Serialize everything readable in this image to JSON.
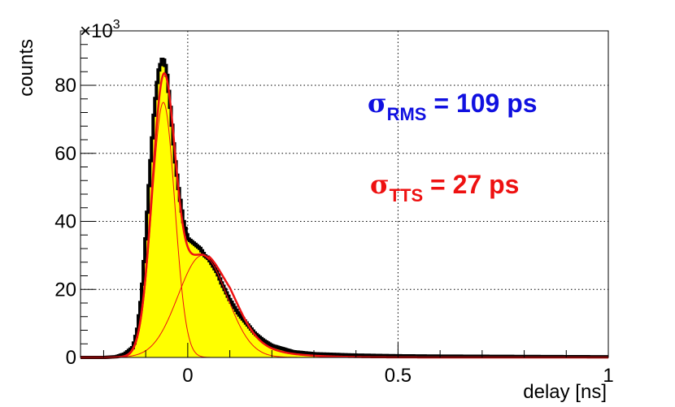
{
  "chart_data": {
    "type": "line",
    "title": "",
    "xlabel": "delay [ns]",
    "ylabel": "counts",
    "y_multiplier": "×10",
    "y_multiplier_exponent": "3",
    "xlim": [
      -0.255,
      1.0
    ],
    "ylim": [
      0,
      96
    ],
    "x_ticks": [
      0,
      0.5,
      1
    ],
    "x_tick_labels": [
      "0",
      "0.5",
      "1"
    ],
    "y_ticks": [
      0,
      20,
      40,
      60,
      80
    ],
    "y_tick_labels": [
      "0",
      "20",
      "40",
      "60",
      "80"
    ],
    "grid": true,
    "annotations": {
      "rms": {
        "sigma": "σ",
        "subscript": "RMS",
        "text": " = 109 ps",
        "color": "#1010e0"
      },
      "tts": {
        "sigma": "σ",
        "subscript": "TTS",
        "text": " = 27 ps",
        "color": "#ee1111"
      }
    },
    "colors": {
      "histogram_fill": "#ffff00",
      "histogram_markers": "#000000",
      "fit_lines": "#ee1111"
    },
    "components": [
      {
        "role": "narrow-gaussian",
        "mean": -0.058,
        "sigma": 0.027,
        "amplitude": 75
      },
      {
        "role": "wide-gaussian",
        "mean": 0.035,
        "sigma": 0.058,
        "amplitude": 30
      },
      {
        "role": "tail",
        "onset": 0.1,
        "decay_ns": 0.07,
        "amplitude": 9
      }
    ],
    "histogram": {
      "x": [
        -0.25,
        -0.2,
        -0.17,
        -0.15,
        -0.13,
        -0.12,
        -0.11,
        -0.1,
        -0.09,
        -0.08,
        -0.07,
        -0.06,
        -0.055,
        -0.05,
        -0.04,
        -0.03,
        -0.02,
        -0.01,
        0,
        0.01,
        0.02,
        0.03,
        0.04,
        0.05,
        0.06,
        0.07,
        0.08,
        0.1,
        0.12,
        0.14,
        0.16,
        0.18,
        0.2,
        0.25,
        0.3,
        0.4,
        0.5,
        0.6,
        0.8,
        1.0
      ],
      "y": [
        0,
        0,
        0.2,
        1,
        3,
        8,
        18,
        35,
        55,
        72,
        84,
        88,
        87,
        84,
        72,
        58,
        48,
        40,
        35,
        34,
        33,
        32,
        30,
        29,
        27,
        25,
        22,
        17,
        13,
        10,
        7,
        5,
        3.5,
        1.7,
        1.1,
        0.7,
        0.5,
        0.4,
        0.3,
        0.2
      ]
    }
  }
}
